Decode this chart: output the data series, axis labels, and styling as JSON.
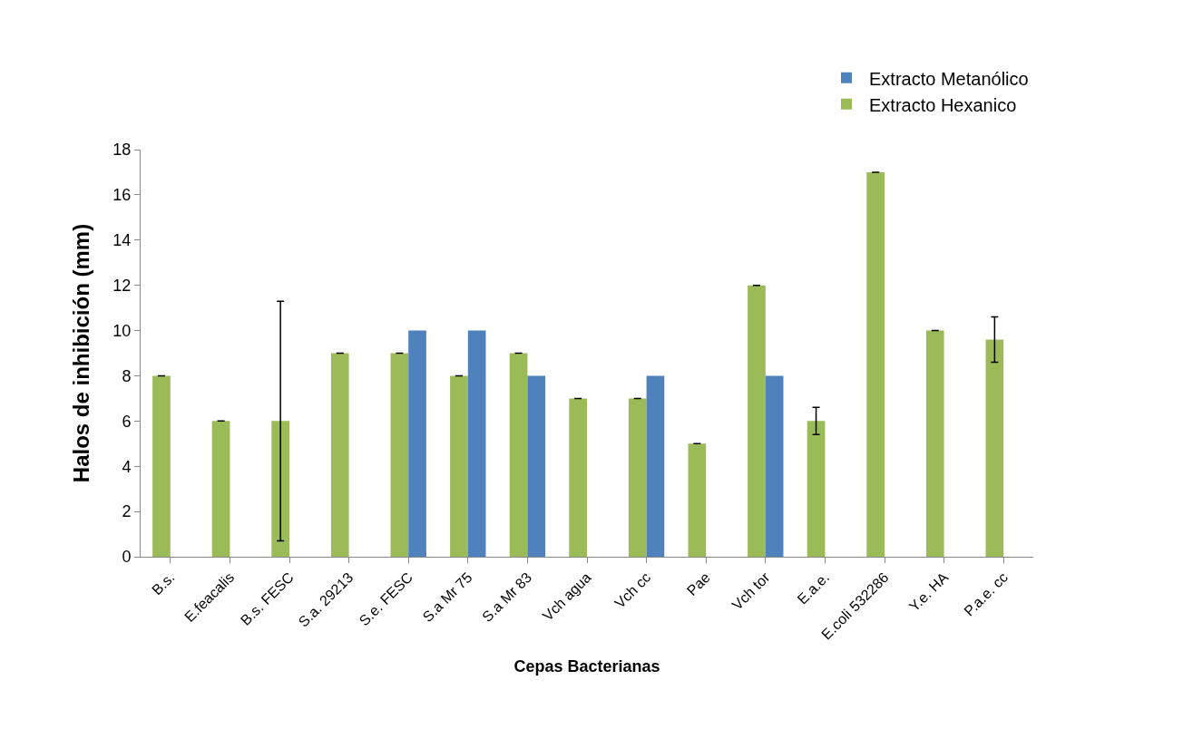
{
  "chart_data": {
    "type": "bar",
    "xlabel": "Cepas Bacterianas",
    "ylabel": "Halos de inhibición (mm)",
    "categories": [
      "B.s.",
      "E.feacalis",
      "B.s. FESC",
      "S.a. 29213",
      "S.e. FESC",
      "S.a Mr 75",
      "S.a Mr 83",
      "Vch agua",
      "Vch cc",
      "Pae",
      "Vch tor",
      "E.a.e.",
      "E.coli 532286",
      "Y.e. HA",
      "P.a.e. cc"
    ],
    "series": [
      {
        "name": "Extracto Hexanico",
        "color": "#9bbb59",
        "values": [
          8,
          6,
          6,
          9,
          9,
          8,
          9,
          7,
          7,
          5,
          12,
          6,
          17,
          10,
          9.6
        ],
        "errors": [
          0,
          0,
          [
            0.7,
            11.3
          ],
          0,
          0,
          0,
          0,
          0,
          0,
          0,
          0,
          [
            5.4,
            6.6
          ],
          0,
          0,
          [
            8.6,
            10.6
          ]
        ]
      },
      {
        "name": "Extracto Metanólico",
        "color": "#4f81bd",
        "values": [
          null,
          null,
          null,
          null,
          10,
          10,
          8,
          null,
          8,
          null,
          8,
          null,
          null,
          null,
          null
        ]
      }
    ],
    "ylim": [
      0,
      18
    ],
    "yticks": [
      0,
      2,
      4,
      6,
      8,
      10,
      12,
      14,
      16,
      18
    ],
    "grid": false,
    "legend": "top right"
  }
}
